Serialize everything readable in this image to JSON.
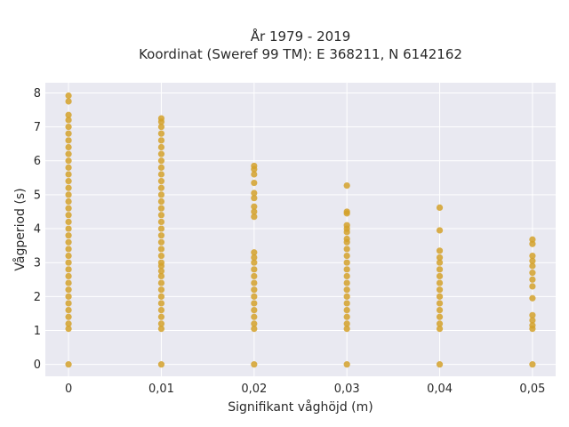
{
  "chart_data": {
    "type": "scatter",
    "title_lines": [
      "År 1979 - 2019",
      "Koordinat (Sweref 99 TM): E 368211, N 6142162"
    ],
    "xlabel": "Signifikant våghöjd (m)",
    "ylabel": "Vågperiod (s)",
    "x_ticks": [
      0,
      0.01,
      0.02,
      0.03,
      0.04,
      0.05
    ],
    "x_tick_labels": [
      "0",
      "0,01",
      "0,02",
      "0,03",
      "0,04",
      "0,05"
    ],
    "y_ticks": [
      0,
      1,
      2,
      3,
      4,
      5,
      6,
      7,
      8
    ],
    "y_tick_labels": [
      "0",
      "1",
      "2",
      "3",
      "4",
      "5",
      "6",
      "7",
      "8"
    ],
    "xlim": [
      -0.0025,
      0.0525
    ],
    "ylim": [
      -0.35,
      8.3
    ],
    "grid": true,
    "marker_color": "#d4a12a",
    "plot_background": "#e9e9f1",
    "series": [
      {
        "points": [
          [
            0,
            0
          ],
          [
            0,
            1.05
          ],
          [
            0,
            1.2
          ],
          [
            0,
            1.4
          ],
          [
            0,
            1.6
          ],
          [
            0,
            1.8
          ],
          [
            0,
            2.0
          ],
          [
            0,
            2.2
          ],
          [
            0,
            2.4
          ],
          [
            0,
            2.6
          ],
          [
            0,
            2.8
          ],
          [
            0,
            3.0
          ],
          [
            0,
            3.2
          ],
          [
            0,
            3.4
          ],
          [
            0,
            3.6
          ],
          [
            0,
            3.8
          ],
          [
            0,
            4.0
          ],
          [
            0,
            4.2
          ],
          [
            0,
            4.4
          ],
          [
            0,
            4.6
          ],
          [
            0,
            4.8
          ],
          [
            0,
            5.0
          ],
          [
            0,
            5.2
          ],
          [
            0,
            5.4
          ],
          [
            0,
            5.6
          ],
          [
            0,
            5.8
          ],
          [
            0,
            6.0
          ],
          [
            0,
            6.2
          ],
          [
            0,
            6.4
          ],
          [
            0,
            6.6
          ],
          [
            0,
            6.8
          ],
          [
            0,
            7.0
          ],
          [
            0,
            7.2
          ],
          [
            0,
            7.35
          ],
          [
            0,
            7.75
          ],
          [
            0,
            7.92
          ],
          [
            0.01,
            0
          ],
          [
            0.01,
            1.05
          ],
          [
            0.01,
            1.2
          ],
          [
            0.01,
            1.4
          ],
          [
            0.01,
            1.6
          ],
          [
            0.01,
            1.8
          ],
          [
            0.01,
            2.0
          ],
          [
            0.01,
            2.2
          ],
          [
            0.01,
            2.4
          ],
          [
            0.01,
            2.6
          ],
          [
            0.01,
            2.75
          ],
          [
            0.01,
            2.9
          ],
          [
            0.01,
            3.0
          ],
          [
            0.01,
            3.2
          ],
          [
            0.01,
            3.4
          ],
          [
            0.01,
            3.6
          ],
          [
            0.01,
            3.8
          ],
          [
            0.01,
            4.0
          ],
          [
            0.01,
            4.2
          ],
          [
            0.01,
            4.4
          ],
          [
            0.01,
            4.6
          ],
          [
            0.01,
            4.8
          ],
          [
            0.01,
            5.0
          ],
          [
            0.01,
            5.2
          ],
          [
            0.01,
            5.4
          ],
          [
            0.01,
            5.6
          ],
          [
            0.01,
            5.8
          ],
          [
            0.01,
            6.0
          ],
          [
            0.01,
            6.2
          ],
          [
            0.01,
            6.4
          ],
          [
            0.01,
            6.6
          ],
          [
            0.01,
            6.8
          ],
          [
            0.01,
            7.0
          ],
          [
            0.01,
            7.15
          ],
          [
            0.01,
            7.25
          ],
          [
            0.02,
            0
          ],
          [
            0.02,
            1.05
          ],
          [
            0.02,
            1.2
          ],
          [
            0.02,
            1.4
          ],
          [
            0.02,
            1.6
          ],
          [
            0.02,
            1.8
          ],
          [
            0.02,
            2.0
          ],
          [
            0.02,
            2.2
          ],
          [
            0.02,
            2.4
          ],
          [
            0.02,
            2.6
          ],
          [
            0.02,
            2.8
          ],
          [
            0.02,
            3.0
          ],
          [
            0.02,
            3.15
          ],
          [
            0.02,
            3.3
          ],
          [
            0.02,
            4.35
          ],
          [
            0.02,
            4.5
          ],
          [
            0.02,
            4.65
          ],
          [
            0.02,
            4.9
          ],
          [
            0.02,
            5.05
          ],
          [
            0.02,
            5.35
          ],
          [
            0.02,
            5.6
          ],
          [
            0.02,
            5.75
          ],
          [
            0.02,
            5.85
          ],
          [
            0.03,
            0
          ],
          [
            0.03,
            1.05
          ],
          [
            0.03,
            1.2
          ],
          [
            0.03,
            1.4
          ],
          [
            0.03,
            1.6
          ],
          [
            0.03,
            1.8
          ],
          [
            0.03,
            2.0
          ],
          [
            0.03,
            2.2
          ],
          [
            0.03,
            2.4
          ],
          [
            0.03,
            2.6
          ],
          [
            0.03,
            2.8
          ],
          [
            0.03,
            3.0
          ],
          [
            0.03,
            3.2
          ],
          [
            0.03,
            3.4
          ],
          [
            0.03,
            3.6
          ],
          [
            0.03,
            3.7
          ],
          [
            0.03,
            3.9
          ],
          [
            0.03,
            4.0
          ],
          [
            0.03,
            4.1
          ],
          [
            0.03,
            4.45
          ],
          [
            0.03,
            4.5
          ],
          [
            0.03,
            5.27
          ],
          [
            0.04,
            0
          ],
          [
            0.04,
            1.05
          ],
          [
            0.04,
            1.2
          ],
          [
            0.04,
            1.4
          ],
          [
            0.04,
            1.6
          ],
          [
            0.04,
            1.8
          ],
          [
            0.04,
            2.0
          ],
          [
            0.04,
            2.2
          ],
          [
            0.04,
            2.4
          ],
          [
            0.04,
            2.6
          ],
          [
            0.04,
            2.8
          ],
          [
            0.04,
            3.0
          ],
          [
            0.04,
            3.15
          ],
          [
            0.04,
            3.35
          ],
          [
            0.04,
            3.95
          ],
          [
            0.04,
            4.62
          ],
          [
            0.05,
            0
          ],
          [
            0.05,
            1.05
          ],
          [
            0.05,
            1.15
          ],
          [
            0.05,
            1.3
          ],
          [
            0.05,
            1.45
          ],
          [
            0.05,
            1.95
          ],
          [
            0.05,
            2.3
          ],
          [
            0.05,
            2.5
          ],
          [
            0.05,
            2.7
          ],
          [
            0.05,
            2.9
          ],
          [
            0.05,
            3.05
          ],
          [
            0.05,
            3.2
          ],
          [
            0.05,
            3.55
          ],
          [
            0.05,
            3.68
          ]
        ]
      }
    ]
  }
}
